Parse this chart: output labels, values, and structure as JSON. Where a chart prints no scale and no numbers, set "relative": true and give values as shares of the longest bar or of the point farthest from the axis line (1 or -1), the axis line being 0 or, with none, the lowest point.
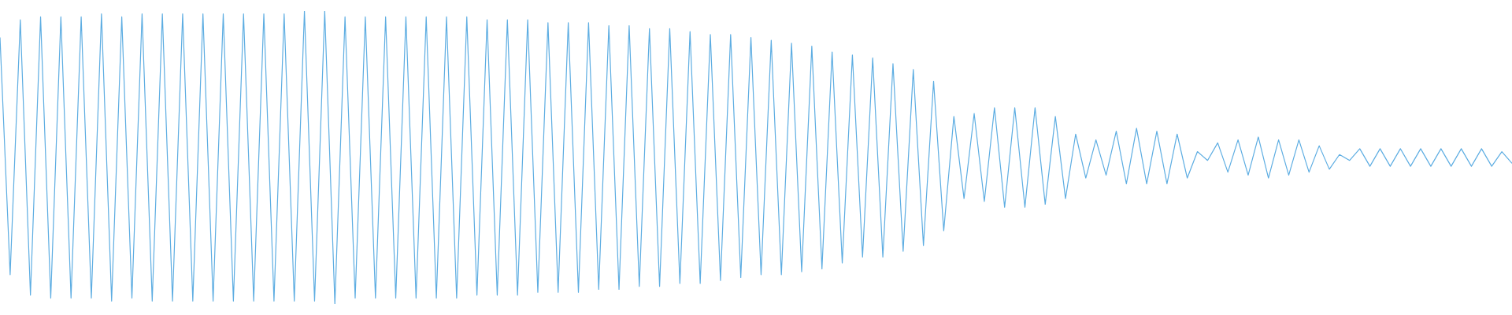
{
  "chart_data": {
    "type": "line",
    "relative": true,
    "color": "#5dade2",
    "categories": [
      null,
      null,
      null,
      null,
      null,
      null,
      null,
      null,
      null,
      null,
      null,
      null,
      null,
      null,
      null,
      null,
      null,
      null,
      null,
      null,
      null,
      null,
      null,
      null,
      null,
      null,
      null,
      null,
      null,
      null,
      null,
      null,
      null,
      null,
      null,
      null,
      null,
      null,
      null,
      null,
      null,
      null,
      null,
      null,
      null,
      null,
      null,
      null,
      null,
      null,
      null,
      null,
      null,
      null,
      null,
      null,
      null,
      null,
      null,
      null,
      null,
      null,
      null,
      null,
      null,
      null,
      null,
      null,
      null,
      null,
      null,
      null,
      null,
      null,
      null,
      null,
      null,
      null,
      null,
      null,
      null,
      null,
      null,
      null,
      null,
      null,
      null,
      null,
      null,
      null,
      null,
      null,
      null,
      null,
      null,
      null,
      null,
      null,
      null,
      null,
      null,
      null,
      null,
      null,
      null,
      null,
      null,
      null,
      null,
      null,
      null,
      null,
      null,
      null,
      null,
      null,
      null,
      null,
      null,
      null,
      null,
      null,
      null,
      null,
      null,
      null,
      null,
      null,
      null,
      null,
      null,
      null,
      null,
      null,
      null,
      null,
      null,
      null,
      null,
      null,
      null,
      null,
      null,
      null,
      null,
      null,
      null,
      null,
      null,
      null
    ],
    "values": [
      0.91,
      0.1,
      0.97,
      0.03,
      0.98,
      0.02,
      0.98,
      0.02,
      0.98,
      0.02,
      0.99,
      0.01,
      0.98,
      0.02,
      0.99,
      0.01,
      0.99,
      0.01,
      0.99,
      0.01,
      0.99,
      0.01,
      0.99,
      0.01,
      0.99,
      0.01,
      0.99,
      0.01,
      0.99,
      0.01,
      1,
      0.01,
      1,
      0,
      0.98,
      0.02,
      0.98,
      0.02,
      0.98,
      0.02,
      0.98,
      0.02,
      0.98,
      0.02,
      0.98,
      0.02,
      0.98,
      0.03,
      0.97,
      0.03,
      0.97,
      0.03,
      0.97,
      0.04,
      0.96,
      0.04,
      0.96,
      0.04,
      0.96,
      0.05,
      0.95,
      0.05,
      0.95,
      0.06,
      0.94,
      0.06,
      0.94,
      0.07,
      0.93,
      0.07,
      0.92,
      0.08,
      0.92,
      0.09,
      0.91,
      0.1,
      0.9,
      0.1,
      0.89,
      0.11,
      0.88,
      0.12,
      0.86,
      0.14,
      0.85,
      0.16,
      0.84,
      0.16,
      0.82,
      0.18,
      0.8,
      0.2,
      0.76,
      0.25,
      0.64,
      0.36,
      0.65,
      0.35,
      0.67,
      0.33,
      0.67,
      0.33,
      0.67,
      0.34,
      0.64,
      0.36,
      0.58,
      0.43,
      0.56,
      0.44,
      0.59,
      0.41,
      0.6,
      0.41,
      0.59,
      0.41,
      0.58,
      0.43,
      0.52,
      0.49,
      0.55,
      0.45,
      0.56,
      0.44,
      0.57,
      0.43,
      0.56,
      0.44,
      0.56,
      0.45,
      0.54,
      0.46,
      0.51,
      0.49,
      0.53,
      0.47,
      0.53,
      0.47,
      0.53,
      0.47,
      0.53,
      0.47,
      0.53,
      0.47,
      0.53,
      0.47,
      0.53,
      0.47,
      0.52,
      0.48
    ]
  }
}
